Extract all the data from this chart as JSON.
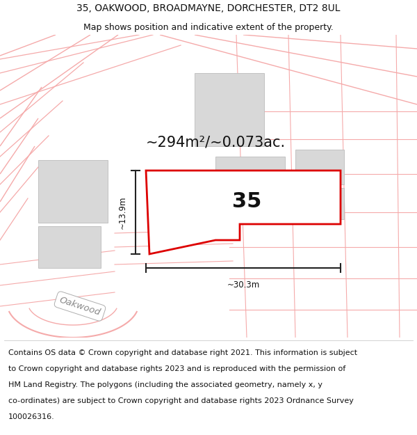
{
  "title": "35, OAKWOOD, BROADMAYNE, DORCHESTER, DT2 8UL",
  "subtitle": "Map shows position and indicative extent of the property.",
  "footer_line1": "Contains OS data © Crown copyright and database right 2021. This information is subject",
  "footer_line2": "to Crown copyright and database rights 2023 and is reproduced with the permission of",
  "footer_line3": "HM Land Registry. The polygons (including the associated geometry, namely x, y",
  "footer_line4": "co-ordinates) are subject to Crown copyright and database rights 2023 Ordnance Survey",
  "footer_line5": "100026316.",
  "area_label": "~294m²/~0.073ac.",
  "property_number": "35",
  "dim_width": "~30.3m",
  "dim_height": "~13.9m",
  "street_label": "Oakwood",
  "bg_color": "#ffffff",
  "map_bg": "#ffffff",
  "road_color": "#f5aaaa",
  "property_outline_color": "#dd0000",
  "property_fill": "#ffffff",
  "building_fill": "#d8d8d8",
  "building_edge": "#bbbbbb",
  "dim_line_color": "#222222",
  "title_fontsize": 10,
  "subtitle_fontsize": 9,
  "footer_fontsize": 8.0,
  "area_label_fontsize": 15,
  "number_fontsize": 22
}
